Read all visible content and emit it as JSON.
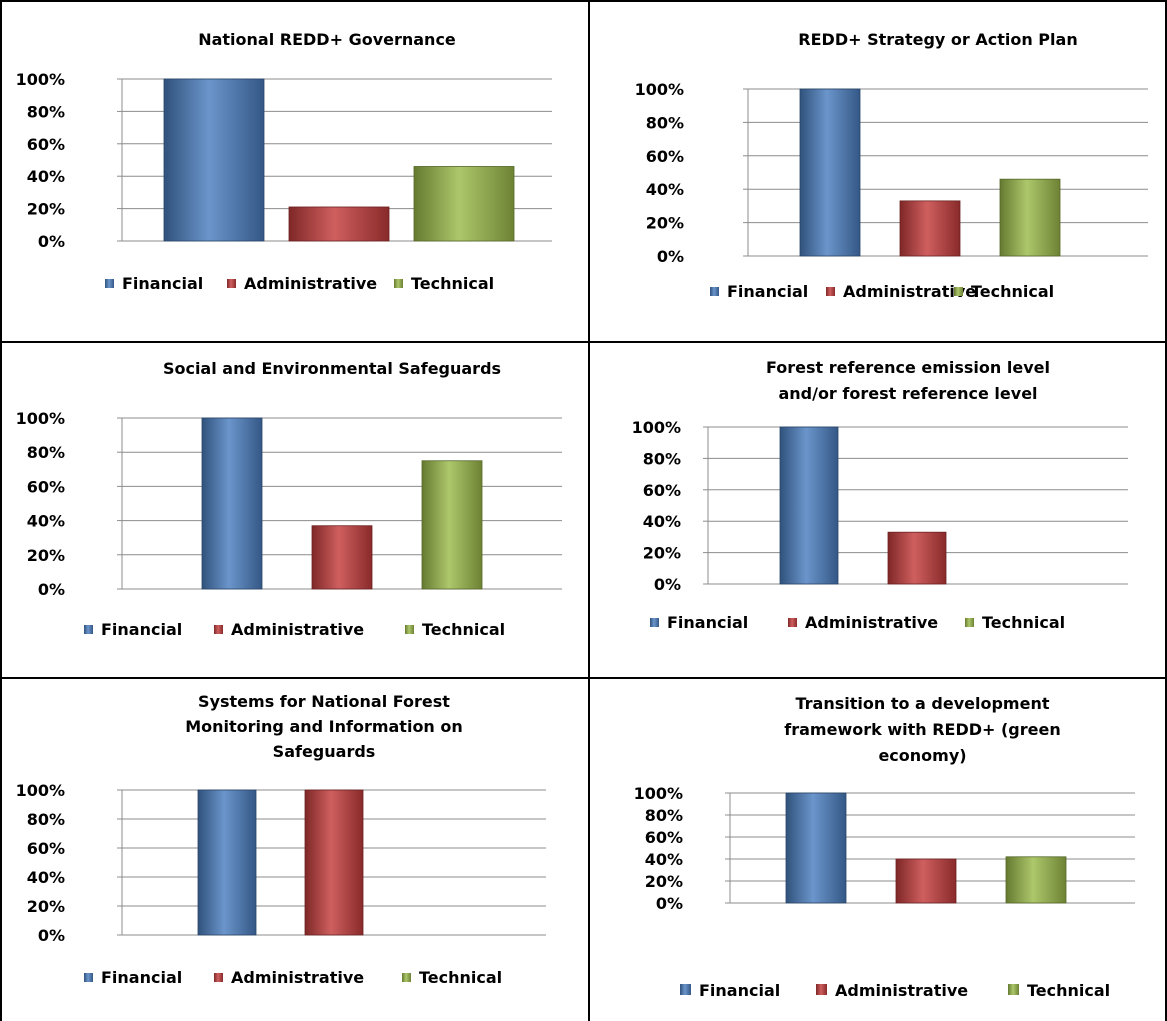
{
  "legend_labels": [
    "Financial",
    "Administrative",
    "Technical"
  ],
  "series_colors": {
    "Financial": "#4a7ebf",
    "Administrative": "#c43c3c",
    "Technical": "#9bbb4a"
  },
  "chart_data": [
    {
      "type": "bar",
      "title": [
        "National REDD+ Governance"
      ],
      "categories": [
        "Financial",
        "Administrative",
        "Technical"
      ],
      "values": [
        100,
        21,
        46
      ],
      "yticks": [
        "0%",
        "20%",
        "40%",
        "60%",
        "80%",
        "100%"
      ],
      "ylim": [
        0,
        100
      ],
      "grid": true,
      "legend_position": "bottom"
    },
    {
      "type": "bar",
      "title": [
        "REDD+ Strategy or Action Plan"
      ],
      "categories": [
        "Financial",
        "Administrative",
        "Technical"
      ],
      "values": [
        100,
        33,
        46
      ],
      "yticks": [
        "0%",
        "20%",
        "40%",
        "60%",
        "80%",
        "100%"
      ],
      "ylim": [
        0,
        100
      ],
      "grid": true,
      "legend_position": "bottom"
    },
    {
      "type": "bar",
      "title": [
        "Social and Environmental Safeguards"
      ],
      "categories": [
        "Financial",
        "Administrative",
        "Technical"
      ],
      "values": [
        100,
        37,
        75
      ],
      "yticks": [
        "0%",
        "20%",
        "40%",
        "60%",
        "80%",
        "100%"
      ],
      "ylim": [
        0,
        100
      ],
      "grid": true,
      "legend_position": "bottom"
    },
    {
      "type": "bar",
      "title": [
        "Forest reference emission level",
        "and/or forest reference level"
      ],
      "categories": [
        "Financial",
        "Administrative",
        "Technical"
      ],
      "values": [
        100,
        33,
        0
      ],
      "yticks": [
        "0%",
        "20%",
        "40%",
        "60%",
        "80%",
        "100%"
      ],
      "ylim": [
        0,
        100
      ],
      "grid": true,
      "legend_position": "bottom"
    },
    {
      "type": "bar",
      "title": [
        "Systems for National Forest",
        "Monitoring and Information on",
        "Safeguards"
      ],
      "categories": [
        "Financial",
        "Administrative",
        "Technical"
      ],
      "values": [
        100,
        100,
        0
      ],
      "yticks": [
        "0%",
        "20%",
        "40%",
        "60%",
        "80%",
        "100%"
      ],
      "ylim": [
        0,
        100
      ],
      "grid": true,
      "legend_position": "bottom"
    },
    {
      "type": "bar",
      "title": [
        "Transition to a development",
        "framework with REDD+ (green",
        "economy)"
      ],
      "categories": [
        "Financial",
        "Administrative",
        "Technical"
      ],
      "values": [
        100,
        40,
        42
      ],
      "yticks": [
        "0%",
        "20%",
        "40%",
        "60%",
        "80%",
        "100%"
      ],
      "ylim": [
        0,
        100
      ],
      "grid": true,
      "legend_position": "bottom"
    }
  ]
}
